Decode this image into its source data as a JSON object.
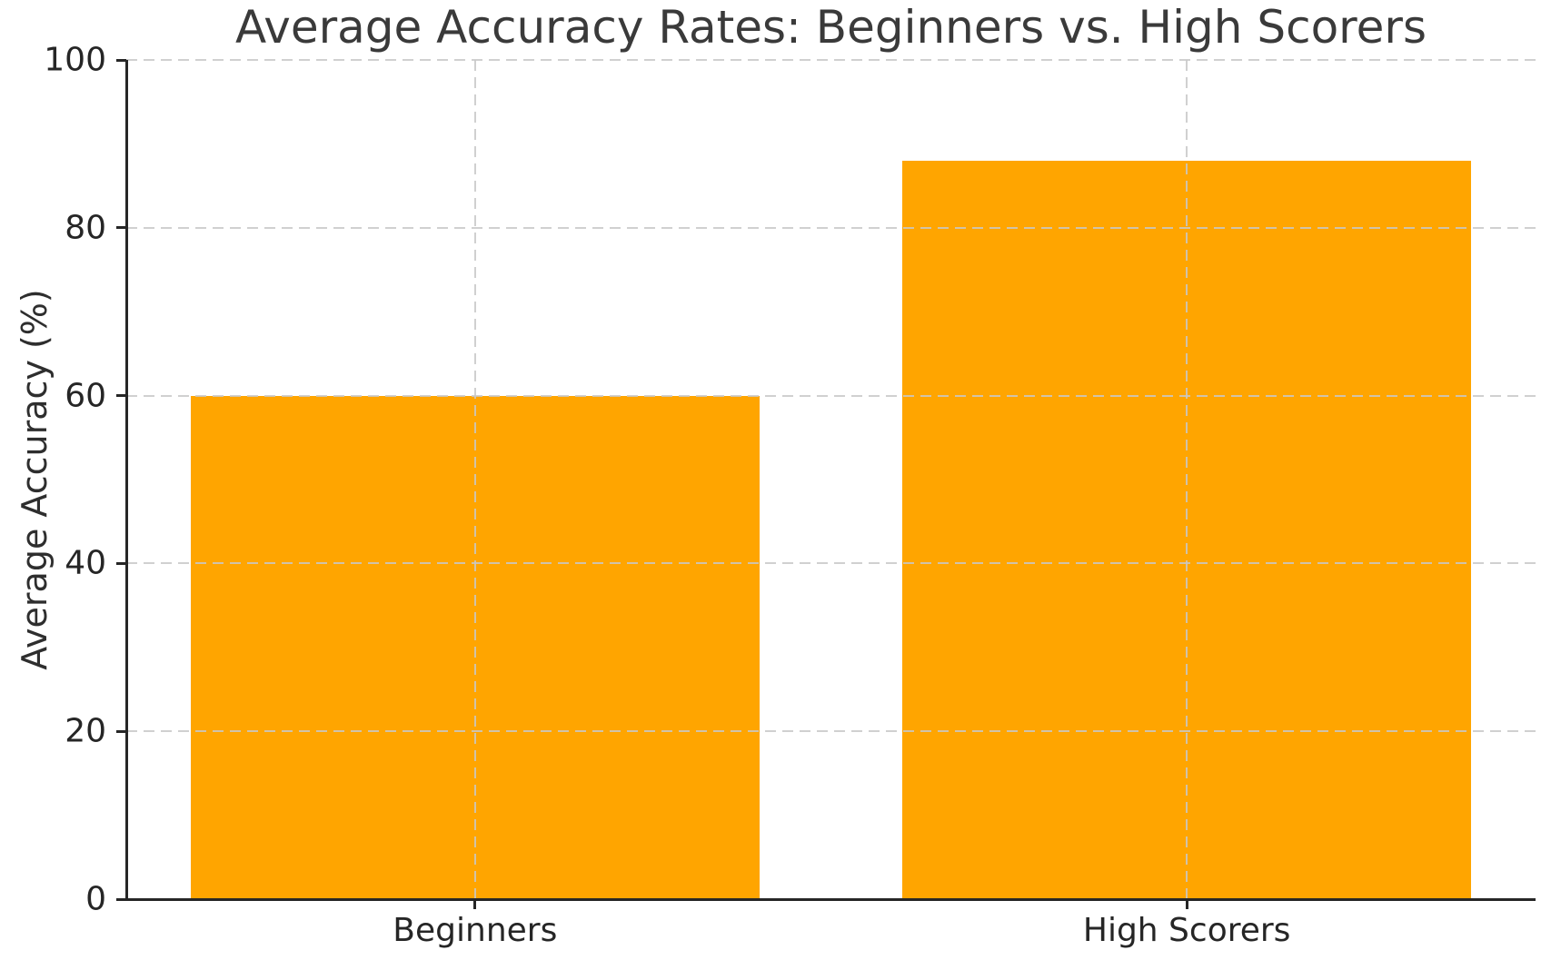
{
  "chart_data": {
    "type": "bar",
    "title": "Average Accuracy Rates: Beginners vs. High Scorers",
    "categories": [
      "Beginners",
      "High Scorers"
    ],
    "values": [
      60,
      88
    ],
    "xlabel": "",
    "ylabel": "Average Accuracy (%)",
    "ylim": [
      0,
      100
    ],
    "yticks": [
      0,
      20,
      40,
      60,
      80,
      100
    ],
    "bar_color": "#FFA500",
    "bar_width_fraction": 0.8,
    "grid": true,
    "grid_line_style": "dashed",
    "grid_color": "#cccccc",
    "grid_on_top_of_bars": true,
    "legend": null,
    "axis_color": "#262626",
    "title_color": "#3a3a3a",
    "tick_label_color": "#262626",
    "background": "#ffffff"
  }
}
